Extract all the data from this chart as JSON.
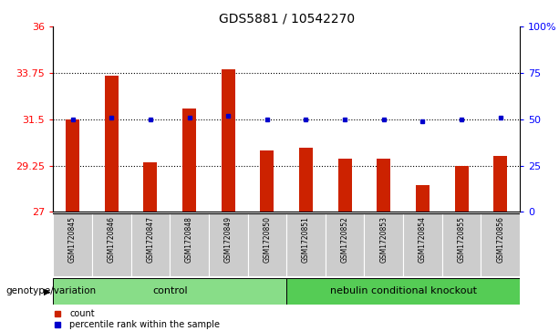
{
  "title": "GDS5881 / 10542270",
  "samples": [
    "GSM1720845",
    "GSM1720846",
    "GSM1720847",
    "GSM1720848",
    "GSM1720849",
    "GSM1720850",
    "GSM1720851",
    "GSM1720852",
    "GSM1720853",
    "GSM1720854",
    "GSM1720855",
    "GSM1720856"
  ],
  "bar_values": [
    31.5,
    33.6,
    29.4,
    32.0,
    33.9,
    30.0,
    30.1,
    29.6,
    29.6,
    28.3,
    29.25,
    29.7
  ],
  "dot_values": [
    50,
    51,
    50,
    51,
    52,
    50,
    50,
    50,
    50,
    49,
    50,
    51
  ],
  "bar_color": "#cc2200",
  "dot_color": "#0000cc",
  "ylim_left": [
    27,
    36
  ],
  "ylim_right": [
    0,
    100
  ],
  "yticks_left": [
    27,
    29.25,
    31.5,
    33.75,
    36
  ],
  "yticks_right": [
    0,
    25,
    50,
    75,
    100
  ],
  "ytick_labels_left": [
    "27",
    "29.25",
    "31.5",
    "33.75",
    "36"
  ],
  "ytick_labels_right": [
    "0",
    "25",
    "50",
    "75",
    "100%"
  ],
  "hlines": [
    29.25,
    31.5,
    33.75
  ],
  "group_control_label": "control",
  "group_ko_label": "nebulin conditional knockout",
  "genotype_label": "genotype/variation",
  "legend_count_label": "count",
  "legend_pct_label": "percentile rank within the sample",
  "bar_color_legend": "#cc2200",
  "dot_color_legend": "#0000cc",
  "bg_color_xticklabels": "#cccccc",
  "green_light": "#88dd88",
  "green_dark": "#55cc55",
  "title_fontsize": 10,
  "axis_fontsize": 8,
  "xtick_fontsize": 5.5,
  "group_fontsize": 8,
  "legend_fontsize": 7,
  "genotype_fontsize": 7.5
}
